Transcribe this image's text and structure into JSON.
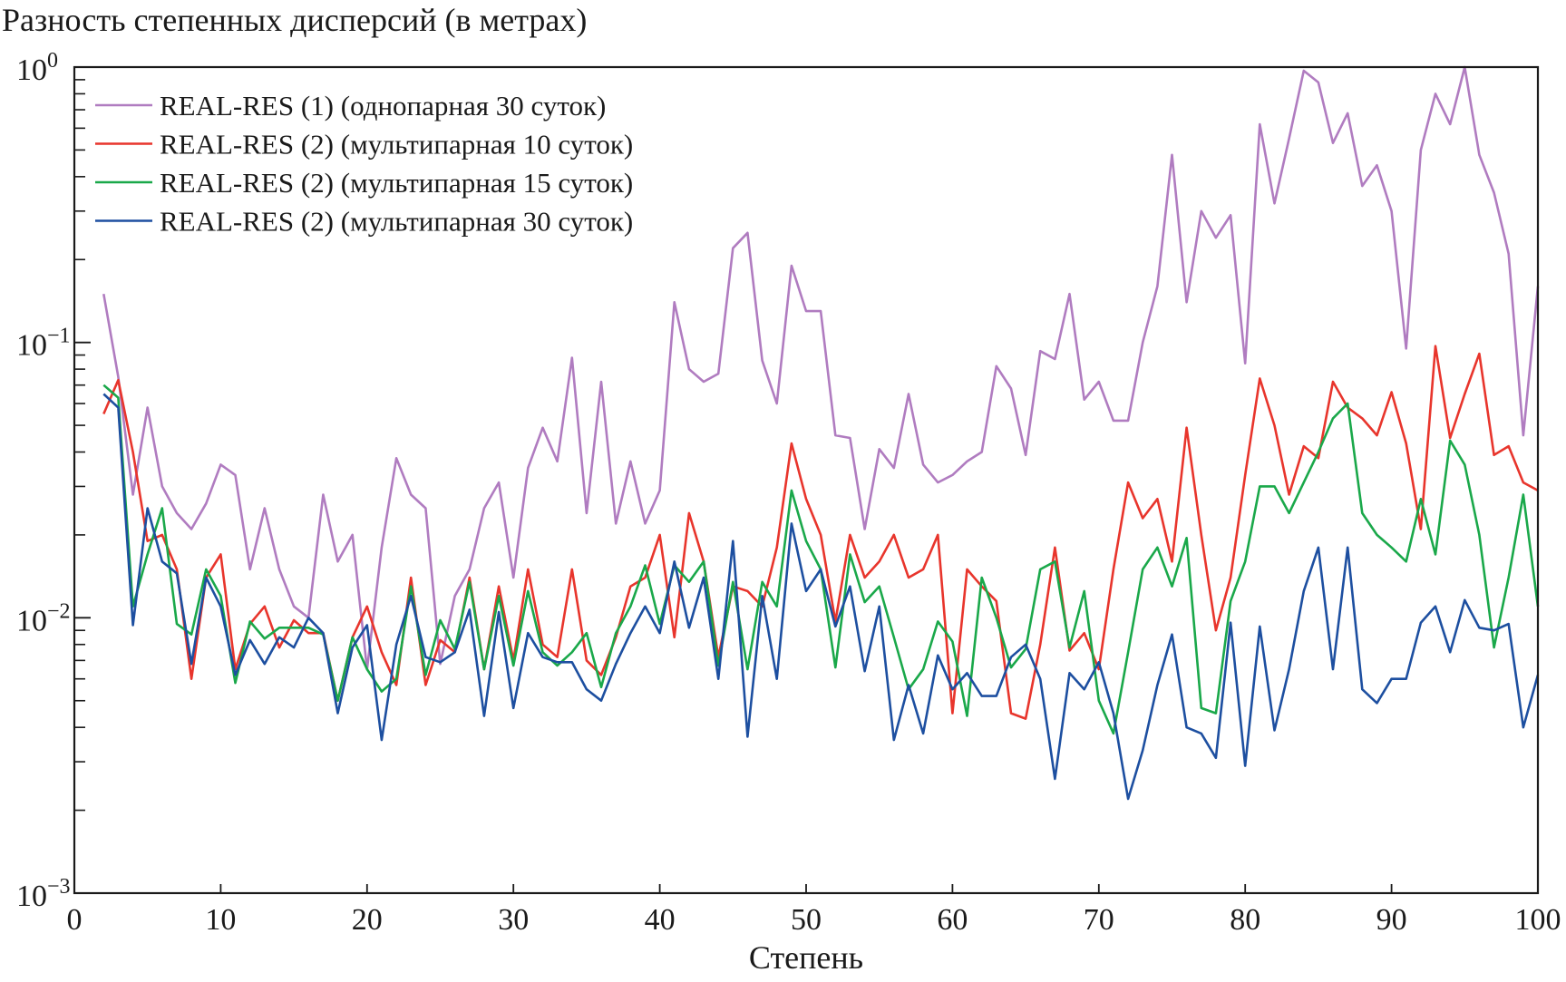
{
  "chart_data": {
    "type": "line",
    "title": "Разность степенных дисперсий (в метрах)",
    "xlabel": "Степень",
    "ylabel": "Разность степенных дисперсий (в метрах)",
    "xlim": [
      0,
      100
    ],
    "ylim": [
      0.001,
      1
    ],
    "yscale": "log",
    "grid": false,
    "legend_position": "top-left",
    "x_ticks": [
      "0",
      "10",
      "20",
      "30",
      "40",
      "50",
      "60",
      "70",
      "80",
      "90",
      "100"
    ],
    "y_ticks": [
      {
        "value": 1,
        "base": "10",
        "exp": "0"
      },
      {
        "value": 0.1,
        "base": "10",
        "exp": "−1"
      },
      {
        "value": 0.01,
        "base": "10",
        "exp": "−2"
      },
      {
        "value": 0.001,
        "base": "10",
        "exp": "−3"
      }
    ],
    "x_start": 2,
    "series": [
      {
        "name": "REAL-RES (1) (однопарная 30 суток)",
        "color": "#b07cc0",
        "values": [
          0.15,
          0.075,
          0.028,
          0.058,
          0.03,
          0.024,
          0.021,
          0.026,
          0.036,
          0.033,
          0.015,
          0.025,
          0.015,
          0.011,
          0.01,
          0.028,
          0.016,
          0.02,
          0.0065,
          0.018,
          0.038,
          0.028,
          0.025,
          0.0068,
          0.012,
          0.015,
          0.025,
          0.031,
          0.014,
          0.035,
          0.049,
          0.037,
          0.088,
          0.024,
          0.072,
          0.022,
          0.037,
          0.022,
          0.029,
          0.14,
          0.08,
          0.072,
          0.077,
          0.22,
          0.25,
          0.086,
          0.06,
          0.19,
          0.13,
          0.13,
          0.046,
          0.045,
          0.021,
          0.041,
          0.035,
          0.065,
          0.036,
          0.031,
          0.033,
          0.037,
          0.04,
          0.082,
          0.068,
          0.039,
          0.093,
          0.087,
          0.15,
          0.062,
          0.072,
          0.052,
          0.052,
          0.1,
          0.16,
          0.48,
          0.14,
          0.3,
          0.24,
          0.29,
          0.084,
          0.62,
          0.32,
          0.55,
          0.97,
          0.88,
          0.53,
          0.68,
          0.37,
          0.44,
          0.3,
          0.095,
          0.5,
          0.8,
          0.62,
          1.0,
          0.48,
          0.35,
          0.21,
          0.046,
          0.16
        ]
      },
      {
        "name": "REAL-RES (2) (мультипарная 10 суток)",
        "color": "#e8352c",
        "values": [
          0.055,
          0.073,
          0.04,
          0.019,
          0.02,
          0.015,
          0.006,
          0.014,
          0.017,
          0.0065,
          0.0095,
          0.011,
          0.0078,
          0.0098,
          0.0088,
          0.0088,
          0.005,
          0.0085,
          0.011,
          0.0075,
          0.0057,
          0.014,
          0.0057,
          0.0083,
          0.0075,
          0.014,
          0.0065,
          0.013,
          0.007,
          0.015,
          0.008,
          0.0072,
          0.015,
          0.007,
          0.0062,
          0.0085,
          0.013,
          0.014,
          0.02,
          0.0085,
          0.024,
          0.016,
          0.0072,
          0.013,
          0.0125,
          0.011,
          0.018,
          0.043,
          0.027,
          0.02,
          0.0097,
          0.02,
          0.014,
          0.016,
          0.02,
          0.014,
          0.015,
          0.02,
          0.0045,
          0.015,
          0.013,
          0.0115,
          0.0045,
          0.0043,
          0.008,
          0.018,
          0.0076,
          0.0088,
          0.0065,
          0.015,
          0.031,
          0.023,
          0.027,
          0.016,
          0.049,
          0.02,
          0.009,
          0.014,
          0.033,
          0.074,
          0.05,
          0.028,
          0.042,
          0.038,
          0.072,
          0.058,
          0.053,
          0.046,
          0.066,
          0.043,
          0.021,
          0.097,
          0.045,
          0.065,
          0.091,
          0.039,
          0.042,
          0.031,
          0.029
        ]
      },
      {
        "name": "REAL-RES (2) (мультипарная 15 суток)",
        "color": "#1aa84a",
        "values": [
          0.07,
          0.063,
          0.011,
          0.017,
          0.025,
          0.0095,
          0.0087,
          0.015,
          0.012,
          0.0058,
          0.0097,
          0.0084,
          0.0092,
          0.0092,
          0.0092,
          0.0087,
          0.005,
          0.0085,
          0.0065,
          0.0054,
          0.006,
          0.013,
          0.0062,
          0.0098,
          0.0077,
          0.0135,
          0.0065,
          0.012,
          0.0067,
          0.0125,
          0.0075,
          0.0067,
          0.0075,
          0.0088,
          0.0056,
          0.0088,
          0.011,
          0.0155,
          0.0095,
          0.0155,
          0.0135,
          0.016,
          0.0067,
          0.0135,
          0.0065,
          0.0135,
          0.011,
          0.029,
          0.019,
          0.015,
          0.0066,
          0.017,
          0.0114,
          0.013,
          0.0085,
          0.0055,
          0.0065,
          0.0097,
          0.0082,
          0.0044,
          0.014,
          0.01,
          0.0066,
          0.0077,
          0.015,
          0.016,
          0.0078,
          0.0125,
          0.005,
          0.0038,
          0.0075,
          0.015,
          0.018,
          0.013,
          0.0195,
          0.0047,
          0.0045,
          0.0115,
          0.016,
          0.03,
          0.03,
          0.024,
          0.031,
          0.04,
          0.053,
          0.06,
          0.024,
          0.02,
          0.018,
          0.016,
          0.027,
          0.017,
          0.044,
          0.036,
          0.02,
          0.0078,
          0.014,
          0.028,
          0.011
        ]
      },
      {
        "name": "REAL-RES (2) (мультипарная 30 суток)",
        "color": "#1d4fa0",
        "values": [
          0.065,
          0.058,
          0.0094,
          0.025,
          0.016,
          0.0145,
          0.0068,
          0.014,
          0.011,
          0.0062,
          0.0083,
          0.0068,
          0.0085,
          0.0078,
          0.01,
          0.0088,
          0.0045,
          0.0078,
          0.0094,
          0.0036,
          0.008,
          0.012,
          0.0072,
          0.0069,
          0.0075,
          0.0107,
          0.0044,
          0.0105,
          0.0047,
          0.0088,
          0.0072,
          0.0069,
          0.0069,
          0.0055,
          0.005,
          0.0068,
          0.0088,
          0.011,
          0.0088,
          0.016,
          0.0092,
          0.014,
          0.006,
          0.019,
          0.0037,
          0.012,
          0.006,
          0.022,
          0.0125,
          0.015,
          0.0093,
          0.013,
          0.0064,
          0.011,
          0.0036,
          0.0057,
          0.0038,
          0.0073,
          0.0055,
          0.0063,
          0.0052,
          0.0052,
          0.0072,
          0.008,
          0.006,
          0.0026,
          0.0063,
          0.0055,
          0.0069,
          0.0045,
          0.0022,
          0.0033,
          0.0057,
          0.0087,
          0.004,
          0.0038,
          0.0031,
          0.0096,
          0.0029,
          0.0093,
          0.0039,
          0.0065,
          0.0125,
          0.018,
          0.0065,
          0.018,
          0.0055,
          0.0049,
          0.006,
          0.006,
          0.0096,
          0.011,
          0.0075,
          0.0116,
          0.0092,
          0.009,
          0.0095,
          0.004,
          0.0062
        ]
      }
    ]
  }
}
